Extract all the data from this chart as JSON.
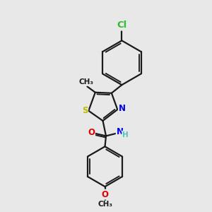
{
  "bg_color": "#e8e8e8",
  "bond_color": "#1a1a1a",
  "bond_width": 1.6,
  "atom_colors": {
    "C": "#1a1a1a",
    "H": "#4fc4c4",
    "N": "#0000ee",
    "O": "#dd0000",
    "S": "#bbbb00",
    "Cl": "#33bb33"
  },
  "font_size": 8.5,
  "fig_size": [
    3.0,
    3.0
  ],
  "dpi": 100,
  "xlim": [
    0,
    10
  ],
  "ylim": [
    0,
    10
  ]
}
